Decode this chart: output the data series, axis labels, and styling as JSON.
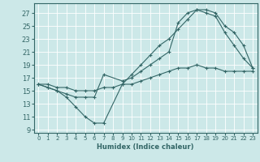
{
  "xlabel": "Humidex (Indice chaleur)",
  "background_color": "#cce8e8",
  "grid_color": "#ffffff",
  "line_color": "#336666",
  "xlim": [
    -0.5,
    23.5
  ],
  "ylim": [
    8.5,
    28.5
  ],
  "yticks": [
    9,
    11,
    13,
    15,
    17,
    19,
    21,
    23,
    25,
    27
  ],
  "xticks": [
    0,
    1,
    2,
    3,
    4,
    5,
    6,
    7,
    8,
    9,
    10,
    11,
    12,
    13,
    14,
    15,
    16,
    17,
    18,
    19,
    20,
    21,
    22,
    23
  ],
  "line1_x": [
    0,
    1,
    2,
    3,
    4,
    5,
    6,
    7,
    9,
    10,
    11,
    12,
    13,
    14,
    15,
    16,
    17,
    18,
    19,
    20,
    21,
    22,
    23
  ],
  "line1_y": [
    16,
    15.5,
    15,
    14,
    12.5,
    11,
    10,
    10,
    16,
    17.5,
    19,
    20.5,
    22,
    23,
    24.5,
    26,
    27.5,
    27.5,
    27,
    25,
    24,
    22,
    18.5
  ],
  "line2_x": [
    0,
    1,
    2,
    3,
    4,
    5,
    6,
    7,
    9,
    10,
    11,
    12,
    13,
    14,
    15,
    16,
    17,
    18,
    19,
    20,
    21,
    22,
    23
  ],
  "line2_y": [
    16,
    15.5,
    15,
    14.5,
    14,
    14,
    14,
    17.5,
    16.5,
    17,
    18,
    19,
    20,
    21,
    25.5,
    27,
    27.5,
    27,
    26.5,
    24,
    22,
    20,
    18.5
  ],
  "line3_x": [
    0,
    1,
    2,
    3,
    4,
    5,
    6,
    7,
    8,
    9,
    10,
    11,
    12,
    13,
    14,
    15,
    16,
    17,
    18,
    19,
    20,
    21,
    22,
    23
  ],
  "line3_y": [
    16,
    16,
    15.5,
    15.5,
    15,
    15,
    15,
    15.5,
    15.5,
    16,
    16,
    16.5,
    17,
    17.5,
    18,
    18.5,
    18.5,
    19,
    18.5,
    18.5,
    18,
    18,
    18,
    18
  ]
}
